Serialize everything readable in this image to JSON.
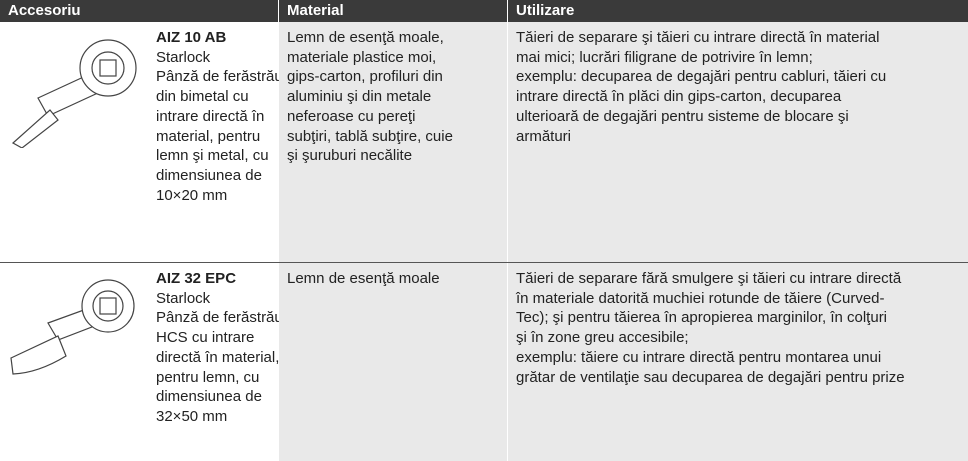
{
  "header": {
    "columns": [
      "Accesoriu",
      "Material",
      "Utilizare"
    ]
  },
  "rows": [
    {
      "name": "AIZ 10 AB",
      "description": [
        "Starlock",
        "Pânză de ferăstrău",
        "din bimetal cu",
        "intrare directă în",
        "material, pentru",
        "lemn şi metal, cu",
        "dimensiunea de",
        "10×20 mm"
      ],
      "material": [
        "Lemn de esenţă moale,",
        "materiale plastice moi,",
        "gips-carton, profiluri din",
        "aluminiu şi din metale",
        "neferoase cu pereţi",
        "subţiri, tablă subţire, cuie",
        "şi şuruburi necălite"
      ],
      "usage": [
        "Tăieri de separare şi tăieri cu intrare directă în material",
        "mai mici; lucrări filigrane de potrivire în lemn;",
        "exemplu: decuparea de degajări pentru cabluri, tăieri cu",
        "intrare directă în plăci din gips-carton, decuparea",
        "ulterioară de degajări pentru sisteme de blocare şi",
        "armături"
      ]
    },
    {
      "name": "AIZ 32 EPC",
      "description": [
        "Starlock",
        "Pânză de ferăstrău",
        "HCS cu intrare",
        "directă în material,",
        "pentru lemn, cu",
        "dimensiunea de",
        "32×50 mm"
      ],
      "material": [
        "Lemn de esenţă moale"
      ],
      "usage": [
        "Tăieri de separare fără smulgere şi tăieri cu intrare directă",
        "în materiale datorită muchiei rotunde de tăiere (Curved-",
        "Tec); şi pentru tăierea în apropierea marginilor, în colţuri",
        "şi în zone greu accesibile;",
        "exemplu: tăiere cu intrare directă pentru montarea unui",
        "grătar de ventilaţie sau decuparea de degajări pentru prize"
      ]
    }
  ]
}
